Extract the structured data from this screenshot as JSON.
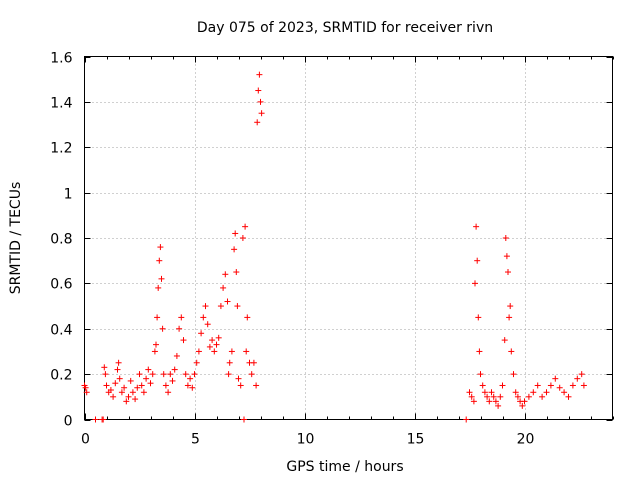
{
  "chart_data": {
    "type": "scatter",
    "title": "Day 075 of 2023, SRMTID for receiver rivn",
    "xlabel": "GPS time / hours",
    "ylabel": "SRMTID / TECUs",
    "xlim": [
      0,
      24
    ],
    "ylim": [
      0,
      1.6
    ],
    "xticks": [
      0,
      5,
      10,
      15,
      20
    ],
    "xtick_labels": [
      "0",
      "5",
      "10",
      "15",
      "20"
    ],
    "yticks": [
      0,
      0.2,
      0.4,
      0.6,
      0.8,
      1.0,
      1.2,
      1.4,
      1.6
    ],
    "ytick_labels": [
      "0",
      "0.2",
      "0.4",
      "0.6",
      "0.8",
      "1",
      "1.2",
      "1.4",
      "1.6"
    ],
    "grid": true,
    "marker": "+",
    "color": "#ff0000",
    "series": [
      {
        "name": "SRMTID",
        "points": [
          [
            0.0,
            0.15
          ],
          [
            0.05,
            0.14
          ],
          [
            0.1,
            0.12
          ],
          [
            0.5,
            0.0
          ],
          [
            0.8,
            0.0
          ],
          [
            0.85,
            0.0
          ],
          [
            0.9,
            0.23
          ],
          [
            0.95,
            0.2
          ],
          [
            1.0,
            0.15
          ],
          [
            1.1,
            0.12
          ],
          [
            1.2,
            0.13
          ],
          [
            1.3,
            0.1
          ],
          [
            1.4,
            0.16
          ],
          [
            1.5,
            0.22
          ],
          [
            1.55,
            0.25
          ],
          [
            1.6,
            0.18
          ],
          [
            1.7,
            0.12
          ],
          [
            1.8,
            0.14
          ],
          [
            1.9,
            0.08
          ],
          [
            2.0,
            0.1
          ],
          [
            2.1,
            0.17
          ],
          [
            2.2,
            0.12
          ],
          [
            2.3,
            0.09
          ],
          [
            2.4,
            0.14
          ],
          [
            2.5,
            0.2
          ],
          [
            2.6,
            0.15
          ],
          [
            2.7,
            0.12
          ],
          [
            2.8,
            0.18
          ],
          [
            2.9,
            0.22
          ],
          [
            3.0,
            0.16
          ],
          [
            3.1,
            0.2
          ],
          [
            3.2,
            0.3
          ],
          [
            3.25,
            0.33
          ],
          [
            3.3,
            0.45
          ],
          [
            3.35,
            0.58
          ],
          [
            3.4,
            0.7
          ],
          [
            3.45,
            0.76
          ],
          [
            3.5,
            0.62
          ],
          [
            3.55,
            0.4
          ],
          [
            3.6,
            0.2
          ],
          [
            3.7,
            0.15
          ],
          [
            3.8,
            0.12
          ],
          [
            3.9,
            0.2
          ],
          [
            4.0,
            0.17
          ],
          [
            4.1,
            0.22
          ],
          [
            4.2,
            0.28
          ],
          [
            4.3,
            0.4
          ],
          [
            4.4,
            0.45
          ],
          [
            4.5,
            0.35
          ],
          [
            4.6,
            0.2
          ],
          [
            4.7,
            0.15
          ],
          [
            4.8,
            0.18
          ],
          [
            4.9,
            0.14
          ],
          [
            5.0,
            0.2
          ],
          [
            5.1,
            0.25
          ],
          [
            5.2,
            0.3
          ],
          [
            5.3,
            0.38
          ],
          [
            5.4,
            0.45
          ],
          [
            5.5,
            0.5
          ],
          [
            5.6,
            0.42
          ],
          [
            5.7,
            0.32
          ],
          [
            5.8,
            0.35
          ],
          [
            5.9,
            0.3
          ],
          [
            6.0,
            0.33
          ],
          [
            6.1,
            0.36
          ],
          [
            6.2,
            0.5
          ],
          [
            6.3,
            0.58
          ],
          [
            6.4,
            0.64
          ],
          [
            6.5,
            0.52
          ],
          [
            6.55,
            0.2
          ],
          [
            6.6,
            0.25
          ],
          [
            6.7,
            0.3
          ],
          [
            6.8,
            0.75
          ],
          [
            6.85,
            0.82
          ],
          [
            6.9,
            0.65
          ],
          [
            6.95,
            0.5
          ],
          [
            7.0,
            0.18
          ],
          [
            7.1,
            0.15
          ],
          [
            7.2,
            0.8
          ],
          [
            7.25,
            0.0
          ],
          [
            7.3,
            0.85
          ],
          [
            7.35,
            0.3
          ],
          [
            7.4,
            0.45
          ],
          [
            7.5,
            0.25
          ],
          [
            7.6,
            0.2
          ],
          [
            7.7,
            0.25
          ],
          [
            7.8,
            0.15
          ],
          [
            7.85,
            1.31
          ],
          [
            7.9,
            1.45
          ],
          [
            7.95,
            1.52
          ],
          [
            8.0,
            1.4
          ],
          [
            8.05,
            1.35
          ],
          [
            17.35,
            0.0
          ],
          [
            17.5,
            0.12
          ],
          [
            17.6,
            0.1
          ],
          [
            17.7,
            0.08
          ],
          [
            17.75,
            0.6
          ],
          [
            17.8,
            0.85
          ],
          [
            17.85,
            0.7
          ],
          [
            17.9,
            0.45
          ],
          [
            17.95,
            0.3
          ],
          [
            18.0,
            0.2
          ],
          [
            18.1,
            0.15
          ],
          [
            18.2,
            0.12
          ],
          [
            18.3,
            0.1
          ],
          [
            18.4,
            0.08
          ],
          [
            18.5,
            0.12
          ],
          [
            18.6,
            0.1
          ],
          [
            18.7,
            0.08
          ],
          [
            18.8,
            0.06
          ],
          [
            18.9,
            0.1
          ],
          [
            19.0,
            0.15
          ],
          [
            19.1,
            0.35
          ],
          [
            19.15,
            0.8
          ],
          [
            19.2,
            0.72
          ],
          [
            19.25,
            0.65
          ],
          [
            19.3,
            0.45
          ],
          [
            19.35,
            0.5
          ],
          [
            19.4,
            0.3
          ],
          [
            19.5,
            0.2
          ],
          [
            19.6,
            0.12
          ],
          [
            19.7,
            0.1
          ],
          [
            19.8,
            0.08
          ],
          [
            19.9,
            0.06
          ],
          [
            20.0,
            0.08
          ],
          [
            20.2,
            0.1
          ],
          [
            20.4,
            0.12
          ],
          [
            20.6,
            0.15
          ],
          [
            20.8,
            0.1
          ],
          [
            21.0,
            0.12
          ],
          [
            21.2,
            0.15
          ],
          [
            21.4,
            0.18
          ],
          [
            21.6,
            0.14
          ],
          [
            21.8,
            0.12
          ],
          [
            22.0,
            0.1
          ],
          [
            22.2,
            0.15
          ],
          [
            22.4,
            0.18
          ],
          [
            22.6,
            0.2
          ],
          [
            22.7,
            0.15
          ]
        ]
      }
    ]
  }
}
